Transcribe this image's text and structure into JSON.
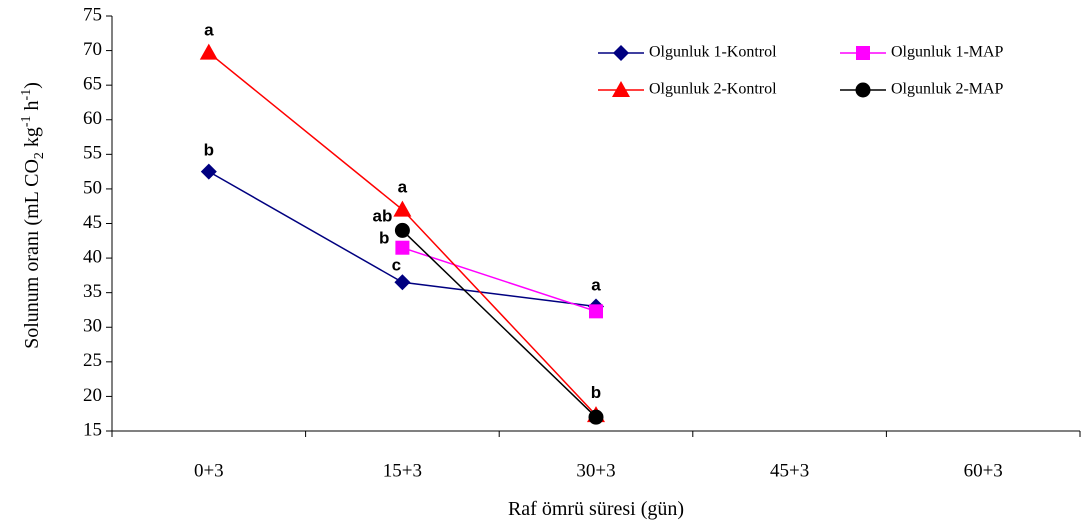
{
  "chart_data": {
    "type": "line",
    "categories": [
      "0+3",
      "15+3",
      "30+3",
      "45+3",
      "60+3"
    ],
    "xlabel": "Raf ömrü süresi (gün)",
    "ylabel": {
      "main": "Solunum oranı (mL CO",
      "sub": "2",
      "mid": " kg",
      "sup1": "-1",
      "mid2": " h",
      "sup2": "-1",
      "end": ")"
    },
    "ylim": [
      15,
      75
    ],
    "ytick_step": 5,
    "grid": false,
    "legend_position": "top-right",
    "series": [
      {
        "name": "Olgunluk 1-Kontrol",
        "color": "#000080",
        "marker": "diamond",
        "points": [
          {
            "x": "0+3",
            "y": 52.5,
            "label": "b"
          },
          {
            "x": "15+3",
            "y": 36.5,
            "label": "c"
          },
          {
            "x": "30+3",
            "y": 33.0,
            "label": "a"
          }
        ]
      },
      {
        "name": "Olgunluk 1-MAP",
        "color": "#ff00ff",
        "marker": "square",
        "points": [
          {
            "x": "15+3",
            "y": 41.5,
            "label": "b"
          },
          {
            "x": "30+3",
            "y": 32.3,
            "label": ""
          }
        ]
      },
      {
        "name": "Olgunluk 2-Kontrol",
        "color": "#ff0000",
        "marker": "triangle",
        "points": [
          {
            "x": "0+3",
            "y": 69.7,
            "label": "a"
          },
          {
            "x": "15+3",
            "y": 47.0,
            "label": "a"
          },
          {
            "x": "30+3",
            "y": 17.3,
            "label": "b"
          }
        ]
      },
      {
        "name": "Olgunluk 2-MAP",
        "color": "#000000",
        "marker": "circle",
        "points": [
          {
            "x": "15+3",
            "y": 44.0,
            "label": "ab"
          },
          {
            "x": "30+3",
            "y": 17.0,
            "label": ""
          }
        ]
      }
    ]
  }
}
